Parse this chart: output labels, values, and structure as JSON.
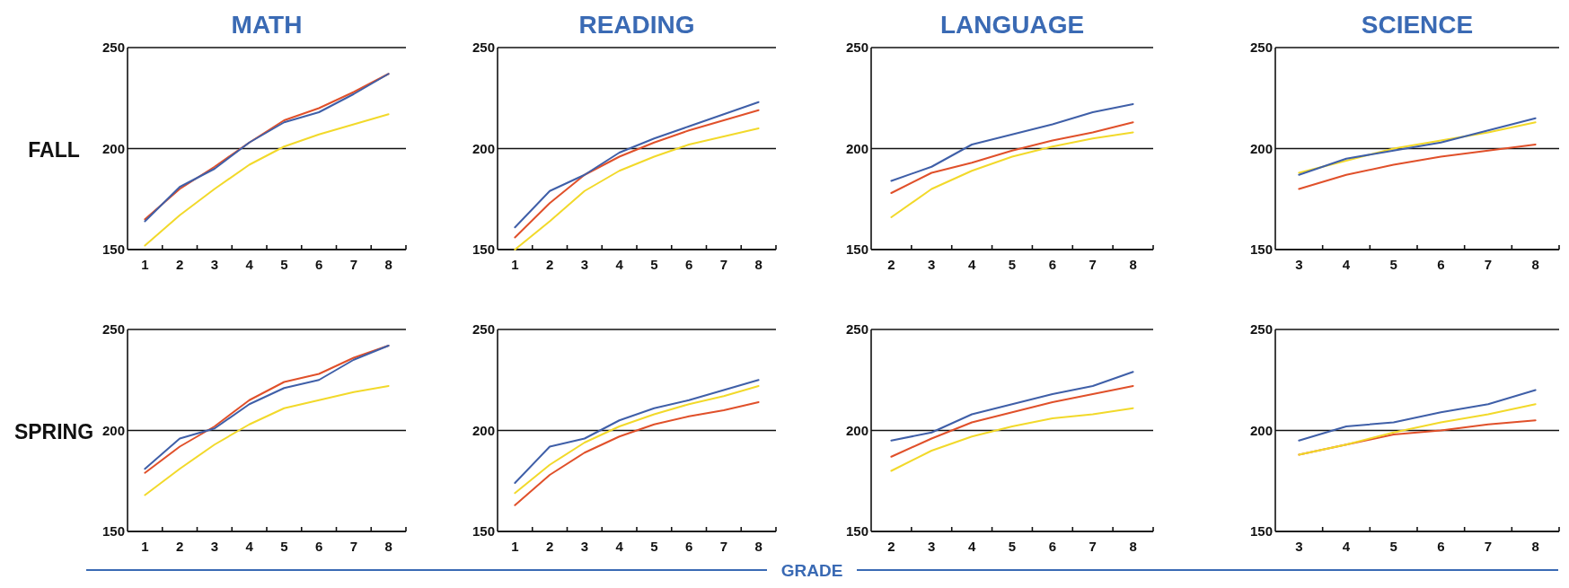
{
  "chart_data": [
    {
      "type": "line",
      "title": "MATH",
      "ylabel": "FALL",
      "categories": [
        "1",
        "2",
        "3",
        "4",
        "5",
        "6",
        "7",
        "8"
      ],
      "ylim": [
        150,
        250
      ],
      "yticks": [
        150,
        200,
        250
      ],
      "grid": "y",
      "series": [
        {
          "color": "#e0502a",
          "values": [
            165,
            180,
            191,
            203,
            214,
            220,
            228,
            237
          ]
        },
        {
          "color": "#f2d92a",
          "values": [
            152,
            167,
            180,
            192,
            201,
            207,
            212,
            217
          ]
        },
        {
          "color": "#3f5fa8",
          "values": [
            164,
            181,
            190,
            203,
            213,
            218,
            227,
            237
          ]
        }
      ]
    },
    {
      "type": "line",
      "title": "READING",
      "categories": [
        "1",
        "2",
        "3",
        "4",
        "5",
        "6",
        "7",
        "8"
      ],
      "ylim": [
        150,
        250
      ],
      "yticks": [
        150,
        200,
        250
      ],
      "grid": "y",
      "series": [
        {
          "color": "#e0502a",
          "values": [
            156,
            173,
            187,
            196,
            203,
            209,
            214,
            219
          ]
        },
        {
          "color": "#f2d92a",
          "values": [
            150,
            164,
            179,
            189,
            196,
            202,
            206,
            210
          ]
        },
        {
          "color": "#3f5fa8",
          "values": [
            161,
            179,
            187,
            198,
            205,
            211,
            217,
            223
          ]
        }
      ]
    },
    {
      "type": "line",
      "title": "LANGUAGE",
      "categories": [
        "2",
        "3",
        "4",
        "5",
        "6",
        "7",
        "8"
      ],
      "ylim": [
        150,
        250
      ],
      "yticks": [
        150,
        200,
        250
      ],
      "grid": "y",
      "series": [
        {
          "color": "#e0502a",
          "values": [
            178,
            188,
            193,
            199,
            204,
            208,
            213
          ]
        },
        {
          "color": "#f2d92a",
          "values": [
            166,
            180,
            189,
            196,
            201,
            205,
            208
          ]
        },
        {
          "color": "#3f5fa8",
          "values": [
            184,
            191,
            202,
            207,
            212,
            218,
            222
          ]
        }
      ]
    },
    {
      "type": "line",
      "title": "SCIENCE",
      "categories": [
        "3",
        "4",
        "5",
        "6",
        "7",
        "8"
      ],
      "ylim": [
        150,
        250
      ],
      "yticks": [
        150,
        200,
        250
      ],
      "grid": "y",
      "series": [
        {
          "color": "#e0502a",
          "values": [
            180,
            187,
            192,
            196,
            199,
            202
          ]
        },
        {
          "color": "#f2d92a",
          "values": [
            188,
            194,
            200,
            204,
            208,
            213
          ]
        },
        {
          "color": "#3f5fa8",
          "values": [
            187,
            195,
            199,
            203,
            209,
            215
          ]
        }
      ]
    },
    {
      "type": "line",
      "ylabel": "SPRING",
      "categories": [
        "1",
        "2",
        "3",
        "4",
        "5",
        "6",
        "7",
        "8"
      ],
      "ylim": [
        150,
        250
      ],
      "yticks": [
        150,
        200,
        250
      ],
      "grid": "y",
      "series": [
        {
          "color": "#e0502a",
          "values": [
            179,
            192,
            202,
            215,
            224,
            228,
            236,
            242
          ]
        },
        {
          "color": "#f2d92a",
          "values": [
            168,
            181,
            193,
            203,
            211,
            215,
            219,
            222
          ]
        },
        {
          "color": "#3f5fa8",
          "values": [
            181,
            196,
            201,
            213,
            221,
            225,
            235,
            242
          ]
        }
      ]
    },
    {
      "type": "line",
      "xlabel": "GRADE",
      "categories": [
        "1",
        "2",
        "3",
        "4",
        "5",
        "6",
        "7",
        "8"
      ],
      "ylim": [
        150,
        250
      ],
      "yticks": [
        150,
        200,
        250
      ],
      "grid": "y",
      "series": [
        {
          "color": "#e0502a",
          "values": [
            163,
            178,
            189,
            197,
            203,
            207,
            210,
            214
          ]
        },
        {
          "color": "#f2d92a",
          "values": [
            169,
            183,
            194,
            202,
            208,
            213,
            217,
            222
          ]
        },
        {
          "color": "#3f5fa8",
          "values": [
            174,
            192,
            196,
            205,
            211,
            215,
            220,
            225
          ]
        }
      ]
    },
    {
      "type": "line",
      "categories": [
        "2",
        "3",
        "4",
        "5",
        "6",
        "7",
        "8"
      ],
      "ylim": [
        150,
        250
      ],
      "yticks": [
        150,
        200,
        250
      ],
      "grid": "y",
      "series": [
        {
          "color": "#e0502a",
          "values": [
            187,
            196,
            204,
            209,
            214,
            218,
            222
          ]
        },
        {
          "color": "#f2d92a",
          "values": [
            180,
            190,
            197,
            202,
            206,
            208,
            211
          ]
        },
        {
          "color": "#3f5fa8",
          "values": [
            195,
            199,
            208,
            213,
            218,
            222,
            229
          ]
        }
      ]
    },
    {
      "type": "line",
      "categories": [
        "3",
        "4",
        "5",
        "6",
        "7",
        "8"
      ],
      "ylim": [
        150,
        250
      ],
      "yticks": [
        150,
        200,
        250
      ],
      "grid": "y",
      "series": [
        {
          "color": "#e0502a",
          "values": [
            188,
            193,
            198,
            200,
            203,
            205
          ]
        },
        {
          "color": "#f2d92a",
          "values": [
            188,
            193,
            199,
            204,
            208,
            213
          ]
        },
        {
          "color": "#3f5fa8",
          "values": [
            195,
            202,
            204,
            209,
            213,
            220
          ]
        }
      ]
    }
  ]
}
